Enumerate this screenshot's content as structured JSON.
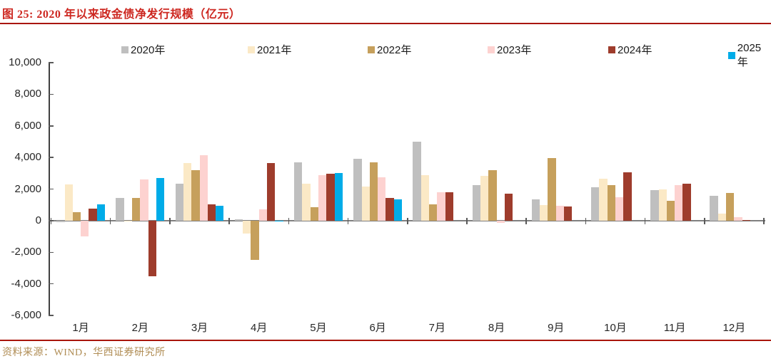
{
  "figure": {
    "title": "图 25:  2020 年以来政金债净发行规模（亿元）",
    "source": "资料来源：WIND，华西证券研究所"
  },
  "colors": {
    "title_red": "#cd2720",
    "rule_red": "#a9150b",
    "source_gold": "#b08d55",
    "axis_dark": "#404040",
    "zero_line_gray": "#7f7f7f"
  },
  "chart_data": {
    "type": "bar",
    "title": "2020 年以来政金债净发行规模（亿元）",
    "categories": [
      "1月",
      "2月",
      "3月",
      "4月",
      "5月",
      "6月",
      "7月",
      "8月",
      "9月",
      "10月",
      "11月",
      "12月"
    ],
    "series": [
      {
        "name": "2020年",
        "color": "#bfbfbf",
        "values": [
          -100,
          1450,
          2350,
          100,
          3700,
          3900,
          5000,
          2250,
          1350,
          2100,
          1950,
          1550
        ]
      },
      {
        "name": "2021年",
        "color": "#fbe9c6",
        "values": [
          2300,
          -70,
          3650,
          -800,
          2350,
          2150,
          2900,
          2850,
          1000,
          2650,
          2000,
          450
        ]
      },
      {
        "name": "2022年",
        "color": "#c6a05c",
        "values": [
          550,
          1450,
          3200,
          -2500,
          850,
          3700,
          1050,
          3200,
          3950,
          2250,
          1250,
          1750
        ]
      },
      {
        "name": "2023年",
        "color": "#fdd2d0",
        "values": [
          -1000,
          2600,
          4150,
          700,
          2900,
          2750,
          1800,
          -150,
          950,
          1500,
          2250,
          200
        ]
      },
      {
        "name": "2024年",
        "color": "#9e3c2c",
        "values": [
          750,
          -3500,
          1050,
          3650,
          2950,
          1450,
          1800,
          1700,
          900,
          3050,
          2350,
          50
        ]
      },
      {
        "name": "2025年",
        "color": "#00ace8",
        "values": [
          1050,
          2700,
          950,
          -60,
          3000,
          1350,
          null,
          null,
          null,
          null,
          null,
          null
        ]
      }
    ],
    "ylim": [
      -6000,
      10000
    ],
    "ytick_step": 2000,
    "ytick_labels": [
      "10,000",
      "8,000",
      "6,000",
      "4,000",
      "2,000",
      "0",
      "-2,000",
      "-4,000",
      "-6,000"
    ],
    "grid": false,
    "legend_position": "top",
    "xlabel": "",
    "ylabel": ""
  }
}
